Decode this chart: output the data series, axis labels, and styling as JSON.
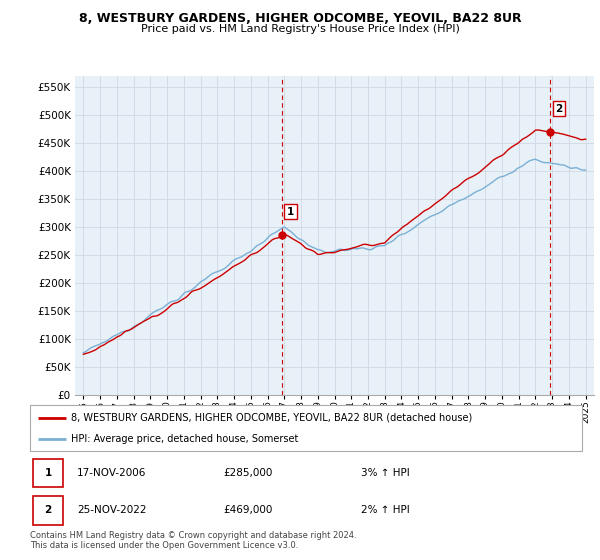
{
  "title_line1": "8, WESTBURY GARDENS, HIGHER ODCOMBE, YEOVIL, BA22 8UR",
  "title_line2": "Price paid vs. HM Land Registry's House Price Index (HPI)",
  "ytick_values": [
    0,
    50000,
    100000,
    150000,
    200000,
    250000,
    300000,
    350000,
    400000,
    450000,
    500000,
    550000
  ],
  "ylim": [
    0,
    570000
  ],
  "xlim": [
    1994.5,
    2025.5
  ],
  "sale1_x": 2006.88,
  "sale1_y": 285000,
  "sale1_label": "1",
  "sale2_x": 2022.9,
  "sale2_y": 469000,
  "sale2_label": "2",
  "red_line_color": "#cc0000",
  "blue_line_color": "#7ab0d4",
  "marker_color": "#cc0000",
  "vline_color": "#cc0000",
  "grid_color": "#d0d8e4",
  "background_color": "#e8f0f8",
  "plot_bg_color": "#e8f0f8",
  "legend_line1": "8, WESTBURY GARDENS, HIGHER ODCOMBE, YEOVIL, BA22 8UR (detached house)",
  "legend_line2": "HPI: Average price, detached house, Somerset",
  "table_row1": [
    "1",
    "17-NOV-2006",
    "£285,000",
    "3% ↑ HPI"
  ],
  "table_row2": [
    "2",
    "25-NOV-2022",
    "£469,000",
    "2% ↑ HPI"
  ],
  "footnote": "Contains HM Land Registry data © Crown copyright and database right 2024.\nThis data is licensed under the Open Government Licence v3.0.",
  "xtick_years": [
    1995,
    1996,
    1997,
    1998,
    1999,
    2000,
    2001,
    2002,
    2003,
    2004,
    2005,
    2006,
    2007,
    2008,
    2009,
    2010,
    2011,
    2012,
    2013,
    2014,
    2015,
    2016,
    2017,
    2018,
    2019,
    2020,
    2021,
    2022,
    2023,
    2024,
    2025
  ]
}
